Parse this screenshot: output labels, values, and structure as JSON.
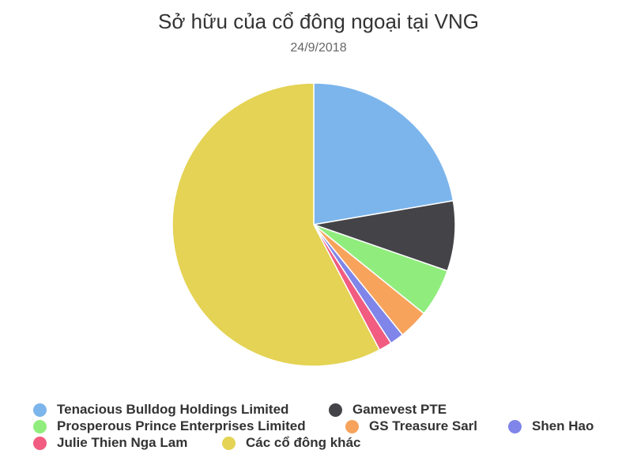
{
  "chart_data": {
    "type": "pie",
    "title": "Sở hữu của cổ đông ngoại tại VNG",
    "subtitle": "24/9/2018",
    "legend_position": "bottom",
    "slices": [
      {
        "name": "Tenacious Bulldog Holdings Limited",
        "value": 22.3,
        "color": "#7cb5ec"
      },
      {
        "name": "Gamevest PTE",
        "value": 8.0,
        "color": "#434348"
      },
      {
        "name": "Prosperous Prince Enterprises Limited",
        "value": 5.5,
        "color": "#90ed7d"
      },
      {
        "name": "GS Treasure Sarl",
        "value": 3.4,
        "color": "#f7a35c"
      },
      {
        "name": "Shen Hao",
        "value": 1.6,
        "color": "#8085e9"
      },
      {
        "name": "Julie Thien Nga Lam",
        "value": 1.5,
        "color": "#f15c80"
      },
      {
        "name": "Các cổ đông khác",
        "value": 57.7,
        "color": "#e4d354"
      }
    ]
  }
}
